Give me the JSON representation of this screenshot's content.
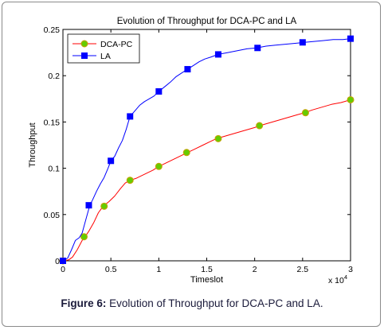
{
  "caption": {
    "label": "Figure 6:",
    "text": " Evolution of Throughput for DCA-PC and LA."
  },
  "chart_data": {
    "type": "line",
    "title": "Evolution of Throughput for DCA-PC and LA",
    "xlabel": "Timeslot",
    "ylabel": "Throughput",
    "x_multiplier_label": "x 10",
    "x_multiplier_exponent": "4",
    "xlim": [
      0,
      3
    ],
    "ylim": [
      0,
      0.25
    ],
    "xticks": [
      0,
      0.5,
      1,
      1.5,
      2,
      2.5,
      3
    ],
    "xtick_labels": [
      "0",
      "0.5",
      "1",
      "1.5",
      "2",
      "2.5",
      "3"
    ],
    "yticks": [
      0,
      0.05,
      0.1,
      0.15,
      0.2,
      0.25
    ],
    "ytick_labels": [
      "0",
      "0.05",
      "0.1",
      "0.15",
      "0.2",
      "0.25"
    ],
    "grid": false,
    "legend_position": "top-left",
    "series": [
      {
        "name": "DCA-PC",
        "color": "#ff0000",
        "marker": "circle",
        "marker_fill": "#66cc00",
        "marker_edge": "#c8a000",
        "line": [
          [
            0,
            0
          ],
          [
            0.06,
            0.001
          ],
          [
            0.1,
            0.004
          ],
          [
            0.15,
            0.012
          ],
          [
            0.2,
            0.022
          ],
          [
            0.23,
            0.026
          ],
          [
            0.27,
            0.032
          ],
          [
            0.32,
            0.041
          ],
          [
            0.37,
            0.052
          ],
          [
            0.42,
            0.059
          ],
          [
            0.48,
            0.064
          ],
          [
            0.54,
            0.07
          ],
          [
            0.6,
            0.078
          ],
          [
            0.65,
            0.084
          ],
          [
            0.7,
            0.087
          ],
          [
            0.76,
            0.089
          ],
          [
            0.82,
            0.092
          ],
          [
            0.88,
            0.095
          ],
          [
            0.94,
            0.098
          ],
          [
            1.0,
            0.102
          ],
          [
            1.06,
            0.105
          ],
          [
            1.12,
            0.108
          ],
          [
            1.18,
            0.111
          ],
          [
            1.24,
            0.114
          ],
          [
            1.3,
            0.117
          ],
          [
            1.38,
            0.121
          ],
          [
            1.46,
            0.125
          ],
          [
            1.54,
            0.129
          ],
          [
            1.6,
            0.132
          ],
          [
            1.7,
            0.135
          ],
          [
            1.8,
            0.138
          ],
          [
            1.9,
            0.141
          ],
          [
            2.0,
            0.144
          ],
          [
            2.05,
            0.146
          ],
          [
            2.15,
            0.149
          ],
          [
            2.25,
            0.152
          ],
          [
            2.35,
            0.155
          ],
          [
            2.45,
            0.158
          ],
          [
            2.52,
            0.16
          ],
          [
            2.6,
            0.163
          ],
          [
            2.7,
            0.166
          ],
          [
            2.8,
            0.169
          ],
          [
            2.9,
            0.171
          ],
          [
            3.0,
            0.174
          ]
        ],
        "markers": [
          [
            0,
            0
          ],
          [
            0.22,
            0.026
          ],
          [
            0.43,
            0.059
          ],
          [
            0.7,
            0.087
          ],
          [
            1.0,
            0.102
          ],
          [
            1.29,
            0.117
          ],
          [
            1.62,
            0.132
          ],
          [
            2.05,
            0.146
          ],
          [
            2.53,
            0.16
          ],
          [
            3.0,
            0.174
          ]
        ]
      },
      {
        "name": "LA",
        "color": "#0000ff",
        "marker": "square",
        "marker_fill": "#0000ff",
        "marker_edge": "#0000ff",
        "line": [
          [
            0,
            0
          ],
          [
            0.05,
            0.003
          ],
          [
            0.09,
            0.012
          ],
          [
            0.13,
            0.022
          ],
          [
            0.17,
            0.025
          ],
          [
            0.2,
            0.03
          ],
          [
            0.24,
            0.045
          ],
          [
            0.28,
            0.06
          ],
          [
            0.31,
            0.066
          ],
          [
            0.35,
            0.075
          ],
          [
            0.39,
            0.083
          ],
          [
            0.43,
            0.09
          ],
          [
            0.47,
            0.1
          ],
          [
            0.5,
            0.108
          ],
          [
            0.54,
            0.113
          ],
          [
            0.58,
            0.122
          ],
          [
            0.62,
            0.13
          ],
          [
            0.66,
            0.142
          ],
          [
            0.7,
            0.156
          ],
          [
            0.75,
            0.162
          ],
          [
            0.8,
            0.168
          ],
          [
            0.85,
            0.172
          ],
          [
            0.9,
            0.175
          ],
          [
            0.95,
            0.178
          ],
          [
            1.0,
            0.183
          ],
          [
            1.06,
            0.188
          ],
          [
            1.12,
            0.193
          ],
          [
            1.18,
            0.199
          ],
          [
            1.24,
            0.203
          ],
          [
            1.3,
            0.207
          ],
          [
            1.36,
            0.211
          ],
          [
            1.42,
            0.215
          ],
          [
            1.48,
            0.218
          ],
          [
            1.54,
            0.22
          ],
          [
            1.62,
            0.223
          ],
          [
            1.72,
            0.225
          ],
          [
            1.82,
            0.227
          ],
          [
            1.92,
            0.229
          ],
          [
            2.02,
            0.23
          ],
          [
            2.12,
            0.232
          ],
          [
            2.22,
            0.233
          ],
          [
            2.32,
            0.234
          ],
          [
            2.42,
            0.235
          ],
          [
            2.52,
            0.236
          ],
          [
            2.62,
            0.237
          ],
          [
            2.72,
            0.238
          ],
          [
            2.82,
            0.239
          ],
          [
            2.92,
            0.239
          ],
          [
            3.0,
            0.24
          ]
        ],
        "markers": [
          [
            0,
            0
          ],
          [
            0.27,
            0.06
          ],
          [
            0.5,
            0.108
          ],
          [
            0.7,
            0.156
          ],
          [
            1.0,
            0.183
          ],
          [
            1.3,
            0.207
          ],
          [
            1.62,
            0.223
          ],
          [
            2.03,
            0.23
          ],
          [
            2.5,
            0.236
          ],
          [
            3.0,
            0.24
          ]
        ]
      }
    ]
  }
}
